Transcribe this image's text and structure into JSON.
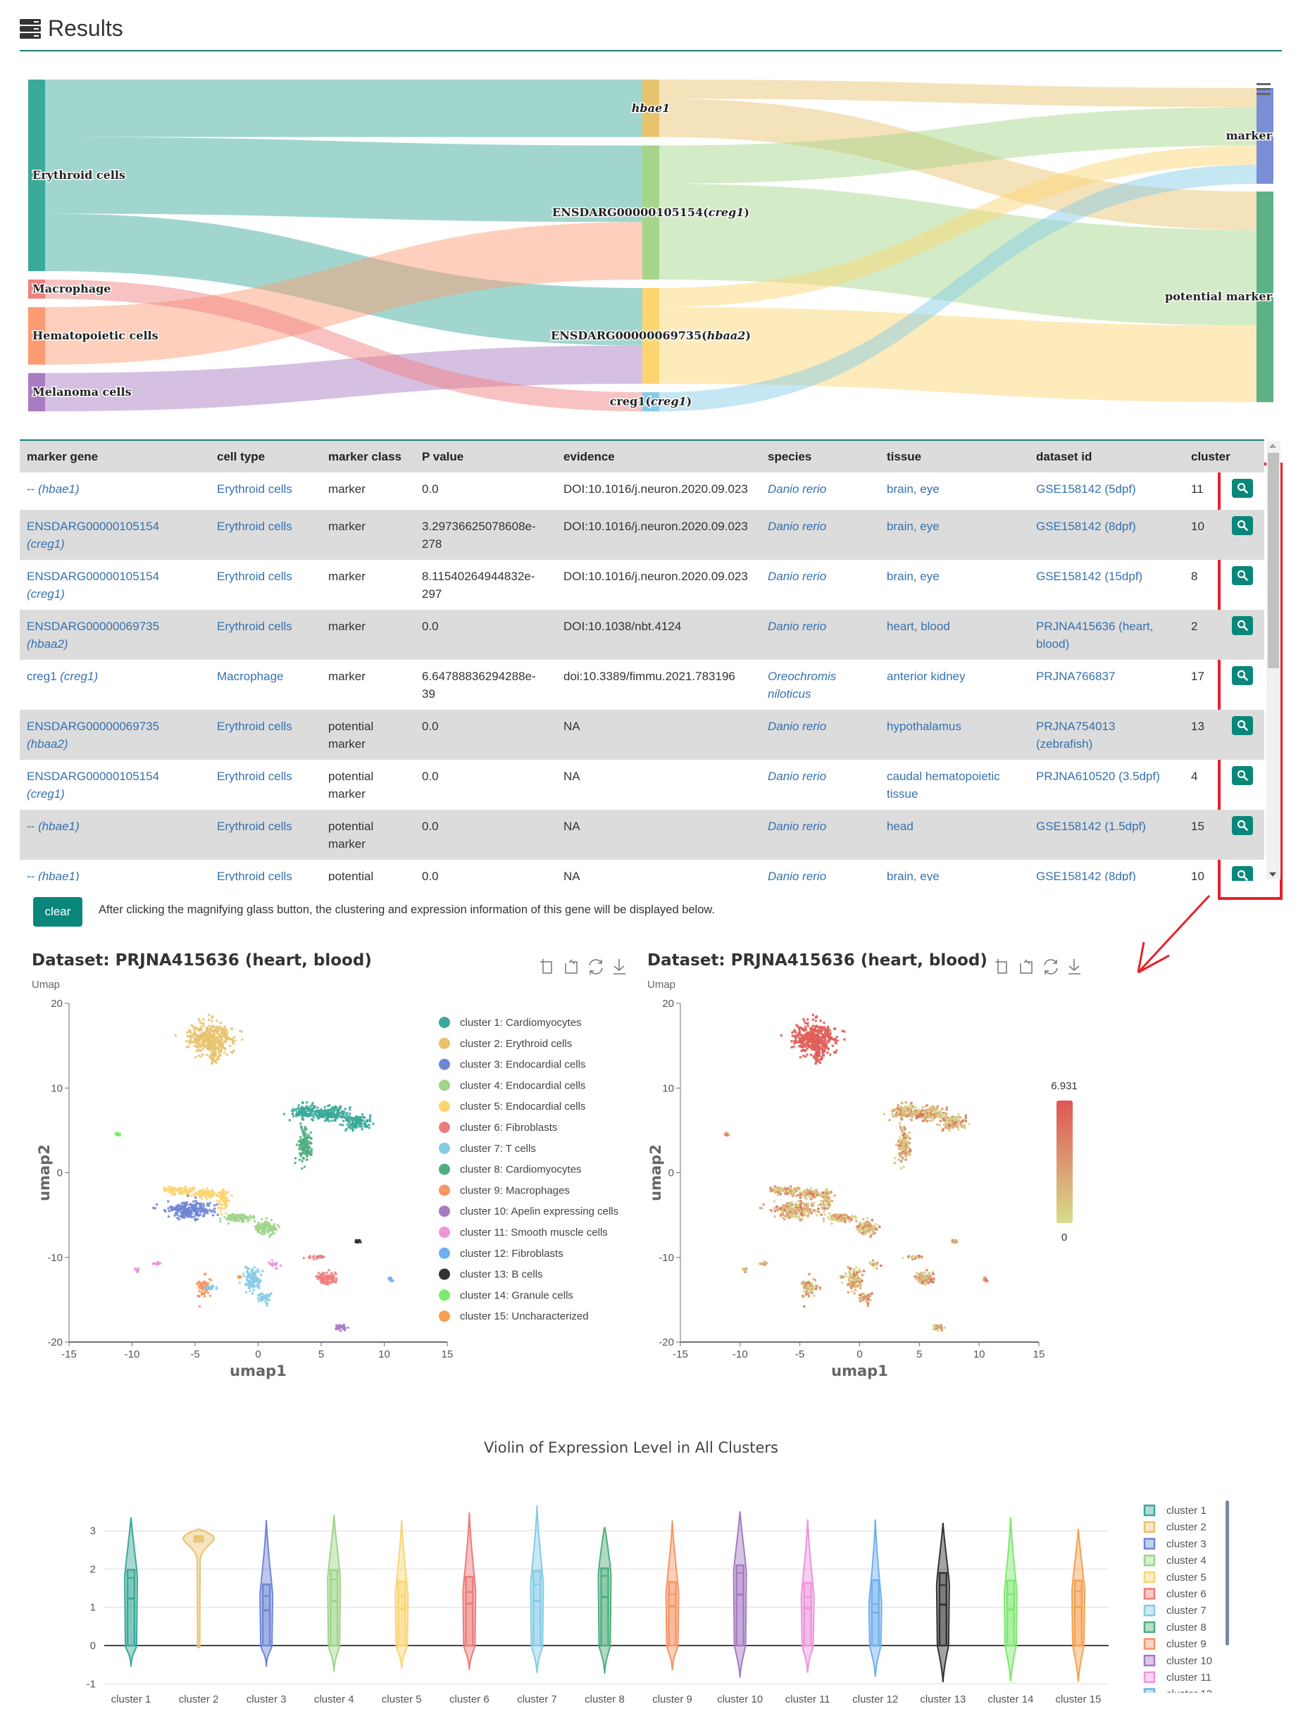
{
  "header": {
    "title": "Results",
    "icon": "server-icon"
  },
  "sankey": {
    "nodes": [
      {
        "id": "erythroid",
        "label_main": "Erythroid cells",
        "label_italic": "",
        "col": 0,
        "value": 10,
        "color": "#3aa99a"
      },
      {
        "id": "macrophage",
        "label_main": "Macrophage",
        "label_italic": "",
        "col": 0,
        "value": 1,
        "color": "#f08080"
      },
      {
        "id": "hematopoietic",
        "label_main": "Hematopoietic cells",
        "label_italic": "",
        "col": 0,
        "value": 3,
        "color": "#fc9a72"
      },
      {
        "id": "melanoma",
        "label_main": "Melanoma cells",
        "label_italic": "",
        "col": 0,
        "value": 2,
        "color": "#a97cc2"
      },
      {
        "id": "hbae1",
        "label_main": "",
        "label_italic": "hbae1",
        "col": 1,
        "value": 3,
        "color": "#e8c36e"
      },
      {
        "id": "g105154",
        "label_main": "ENSDARG00000105154(",
        "label_italic": "creg1",
        "label_end": ")",
        "col": 1,
        "value": 7,
        "color": "#a5d58a"
      },
      {
        "id": "g069735",
        "label_main": "ENSDARG00000069735(",
        "label_italic": "hbaa2",
        "label_end": ")",
        "col": 1,
        "value": 5,
        "color": "#fcd571"
      },
      {
        "id": "creg1",
        "label_main": "creg1(",
        "label_italic": "creg1",
        "label_end": ")",
        "col": 1,
        "value": 1,
        "color": "#86cbe6"
      },
      {
        "id": "marker",
        "label_main": "marker",
        "label_italic": "",
        "col": 2,
        "value": 5,
        "color": "#7a8fd6"
      },
      {
        "id": "potential",
        "label_main": "potential marker",
        "label_italic": "",
        "col": 2,
        "value": 11,
        "color": "#5db185"
      }
    ],
    "links": [
      {
        "source": "erythroid",
        "target": "hbae1",
        "value": 3
      },
      {
        "source": "erythroid",
        "target": "g105154",
        "value": 4
      },
      {
        "source": "erythroid",
        "target": "g069735",
        "value": 3
      },
      {
        "source": "hematopoietic",
        "target": "g105154",
        "value": 3
      },
      {
        "source": "melanoma",
        "target": "g069735",
        "value": 2
      },
      {
        "source": "macrophage",
        "target": "creg1",
        "value": 1
      },
      {
        "source": "hbae1",
        "target": "marker",
        "value": 1
      },
      {
        "source": "hbae1",
        "target": "potential",
        "value": 2
      },
      {
        "source": "g105154",
        "target": "marker",
        "value": 2
      },
      {
        "source": "g105154",
        "target": "potential",
        "value": 5
      },
      {
        "source": "g069735",
        "target": "marker",
        "value": 1
      },
      {
        "source": "g069735",
        "target": "potential",
        "value": 4
      },
      {
        "source": "creg1",
        "target": "marker",
        "value": 1
      }
    ],
    "menu_icon": "hamburger-menu-icon"
  },
  "table": {
    "columns": [
      "marker gene",
      "cell type",
      "marker class",
      "P value",
      "evidence",
      "species",
      "tissue",
      "dataset id",
      "cluster"
    ],
    "rows": [
      {
        "gene": "--",
        "gene_italic": "(hbae1)",
        "cell_type": "Erythroid cells",
        "marker_class": "marker",
        "p_value": "0.0",
        "evidence": "DOI:10.1016/j.neuron.2020.09.023",
        "species": "Danio rerio",
        "tissue": "brain, eye",
        "dataset": "GSE158142 (5dpf)",
        "cluster": "11"
      },
      {
        "gene": "ENSDARG00000105154",
        "gene_italic": "(creg1)",
        "cell_type": "Erythroid cells",
        "marker_class": "marker",
        "p_value": "3.29736625078608e-278",
        "evidence": "DOI:10.1016/j.neuron.2020.09.023",
        "species": "Danio rerio",
        "tissue": "brain, eye",
        "dataset": "GSE158142 (8dpf)",
        "cluster": "10"
      },
      {
        "gene": "ENSDARG00000105154",
        "gene_italic": "(creg1)",
        "cell_type": "Erythroid cells",
        "marker_class": "marker",
        "p_value": "8.11540264944832e-297",
        "evidence": "DOI:10.1016/j.neuron.2020.09.023",
        "species": "Danio rerio",
        "tissue": "brain, eye",
        "dataset": "GSE158142 (15dpf)",
        "cluster": "8"
      },
      {
        "gene": "ENSDARG00000069735",
        "gene_italic": "(hbaa2)",
        "cell_type": "Erythroid cells",
        "marker_class": "marker",
        "p_value": "0.0",
        "evidence": "DOI:10.1038/nbt.4124",
        "species": "Danio rerio",
        "tissue": "heart, blood",
        "dataset": "PRJNA415636 (heart, blood)",
        "cluster": "2"
      },
      {
        "gene": "creg1",
        "gene_italic": "(creg1)",
        "cell_type": "Macrophage",
        "marker_class": "marker",
        "p_value": "6.64788836294288e-39",
        "evidence": "doi:10.3389/fimmu.2021.783196",
        "species": "Oreochromis niloticus",
        "tissue": "anterior kidney",
        "dataset": "PRJNA766837",
        "cluster": "17"
      },
      {
        "gene": "ENSDARG00000069735",
        "gene_italic": "(hbaa2)",
        "cell_type": "Erythroid cells",
        "marker_class": "potential marker",
        "p_value": "0.0",
        "evidence": "NA",
        "species": "Danio rerio",
        "tissue": "hypothalamus",
        "dataset": "PRJNA754013 (zebrafish)",
        "cluster": "13"
      },
      {
        "gene": "ENSDARG00000105154",
        "gene_italic": "(creg1)",
        "cell_type": "Erythroid cells",
        "marker_class": "potential marker",
        "p_value": "0.0",
        "evidence": "NA",
        "species": "Danio rerio",
        "tissue": "caudal hematopoietic tissue",
        "dataset": "PRJNA610520 (3.5dpf)",
        "cluster": "4"
      },
      {
        "gene": "--",
        "gene_italic": "(hbae1)",
        "cell_type": "Erythroid cells",
        "marker_class": "potential marker",
        "p_value": "0.0",
        "evidence": "NA",
        "species": "Danio rerio",
        "tissue": "head",
        "dataset": "GSE158142 (1.5dpf)",
        "cluster": "15"
      },
      {
        "gene": "--",
        "gene_italic": "(hbae1)",
        "cell_type": "Erythroid cells",
        "marker_class": "potential",
        "p_value": "0.0",
        "evidence": "NA",
        "species": "Danio rerio",
        "tissue": "brain, eye",
        "dataset": "GSE158142 (8dpf)",
        "cluster": "10"
      }
    ],
    "action_icon": "search-icon"
  },
  "controls": {
    "clear_label": "clear",
    "hint": "After clicking the magnifying glass button, the clustering and expression information of this gene will be displayed below."
  },
  "colors": {
    "accent": "#0a877b",
    "link": "#3572b0",
    "annotation": "#e8202a"
  },
  "chart_data": [
    {
      "type": "scatter",
      "title": "Dataset: PRJNA415636 (heart, blood)",
      "subtitle": "Umap",
      "xlabel": "umap1",
      "ylabel": "umap2",
      "xlim": [
        -15,
        15
      ],
      "ylim": [
        -20,
        20
      ],
      "xticks": [
        -15,
        -10,
        -5,
        0,
        5,
        10,
        15
      ],
      "yticks": [
        -20,
        -10,
        0,
        10,
        20
      ],
      "legend_position": "right",
      "toolbox": [
        "zoom-icon",
        "zoom-reset-icon",
        "restore-icon",
        "download-icon"
      ],
      "legend": [
        {
          "name": "cluster 1: Cardiomyocytes",
          "color": "#3aa99a"
        },
        {
          "name": "cluster 2: Erythroid cells",
          "color": "#e8c36e"
        },
        {
          "name": "cluster 3: Endocardial cells",
          "color": "#6f86d6"
        },
        {
          "name": "cluster 4: Endocardial cells",
          "color": "#9fd48a"
        },
        {
          "name": "cluster 5: Endocardial cells",
          "color": "#fcd571"
        },
        {
          "name": "cluster 6: Fibroblasts",
          "color": "#ee7b7b"
        },
        {
          "name": "cluster 7: T cells",
          "color": "#86cbe6"
        },
        {
          "name": "cluster 8: Cardiomyocytes",
          "color": "#4fae80"
        },
        {
          "name": "cluster 9: Macrophages",
          "color": "#f79565"
        },
        {
          "name": "cluster 10: Apelin expressing cells",
          "color": "#a57bc2"
        },
        {
          "name": "cluster 11: Smooth muscle cells",
          "color": "#ee94dc"
        },
        {
          "name": "cluster 12: Fibroblasts",
          "color": "#6fb0ee"
        },
        {
          "name": "cluster 13: B cells",
          "color": "#333333"
        },
        {
          "name": "cluster 14: Granule cells",
          "color": "#7ee870"
        },
        {
          "name": "cluster 15: Uncharacterized",
          "color": "#f6a04f"
        }
      ],
      "regions": [
        {
          "cluster": 2,
          "cx": -3.7,
          "cy": 15.8,
          "sx": 1.1,
          "sy": 1.1
        },
        {
          "cluster": 2,
          "cx": -3.5,
          "cy": 13.8,
          "sx": 0.2,
          "sy": 0.5
        },
        {
          "cluster": 1,
          "cx": 3.8,
          "cy": 7.2,
          "sx": 0.8,
          "sy": 0.45
        },
        {
          "cluster": 1,
          "cx": 5.8,
          "cy": 7.0,
          "sx": 0.9,
          "sy": 0.5
        },
        {
          "cluster": 1,
          "cx": 7.8,
          "cy": 6.0,
          "sx": 0.7,
          "sy": 0.5
        },
        {
          "cluster": 8,
          "cx": 3.7,
          "cy": 3.4,
          "sx": 0.3,
          "sy": 1.3
        },
        {
          "cluster": 5,
          "cx": -6.3,
          "cy": -2.1,
          "sx": 0.8,
          "sy": 0.3
        },
        {
          "cluster": 5,
          "cx": -4.0,
          "cy": -2.5,
          "sx": 0.9,
          "sy": 0.3
        },
        {
          "cluster": 5,
          "cx": -2.7,
          "cy": -3.2,
          "sx": 0.25,
          "sy": 0.8
        },
        {
          "cluster": 3,
          "cx": -5.5,
          "cy": -4.4,
          "sx": 1.1,
          "sy": 0.6
        },
        {
          "cluster": 4,
          "cx": -1.5,
          "cy": -5.3,
          "sx": 0.8,
          "sy": 0.3
        },
        {
          "cluster": 4,
          "cx": 0.6,
          "cy": -6.5,
          "sx": 0.6,
          "sy": 0.5
        },
        {
          "cluster": 14,
          "cx": -11.1,
          "cy": 4.6,
          "sx": 0.15,
          "sy": 0.15
        },
        {
          "cluster": 13,
          "cx": 7.9,
          "cy": -8.1,
          "sx": 0.2,
          "sy": 0.1
        },
        {
          "cluster": 6,
          "cx": 5.4,
          "cy": -12.5,
          "sx": 0.5,
          "sy": 0.5
        },
        {
          "cluster": 6,
          "cx": 4.6,
          "cy": -10.0,
          "sx": 0.4,
          "sy": 0.15
        },
        {
          "cluster": 12,
          "cx": 10.5,
          "cy": -12.5,
          "sx": 0.15,
          "sy": 0.2
        },
        {
          "cluster": 9,
          "cx": -4.3,
          "cy": -13.5,
          "sx": 0.3,
          "sy": 0.7
        },
        {
          "cluster": 15,
          "cx": -1.5,
          "cy": -12.3,
          "sx": 0.1,
          "sy": 0.1
        },
        {
          "cluster": 7,
          "cx": -0.5,
          "cy": -12.5,
          "sx": 0.4,
          "sy": 0.8
        },
        {
          "cluster": 7,
          "cx": 0.5,
          "cy": -14.8,
          "sx": 0.3,
          "sy": 0.4
        },
        {
          "cluster": 7,
          "cx": -3.8,
          "cy": -13.5,
          "sx": 0.3,
          "sy": 0.2
        },
        {
          "cluster": 11,
          "cx": -9.6,
          "cy": -11.5,
          "sx": 0.15,
          "sy": 0.2
        },
        {
          "cluster": 11,
          "cx": -8.0,
          "cy": -10.7,
          "sx": 0.2,
          "sy": 0.1
        },
        {
          "cluster": 11,
          "cx": 1.3,
          "cy": -10.8,
          "sx": 0.3,
          "sy": 0.2
        },
        {
          "cluster": 10,
          "cx": 6.6,
          "cy": -18.3,
          "sx": 0.3,
          "sy": 0.25
        }
      ]
    },
    {
      "type": "scatter",
      "title": "Dataset: PRJNA415636 (heart, blood)",
      "subtitle": "Umap",
      "xlabel": "umap1",
      "ylabel": "umap2",
      "xlim": [
        -15,
        15
      ],
      "ylim": [
        -20,
        20
      ],
      "xticks": [
        -15,
        -10,
        -5,
        0,
        5,
        10,
        15
      ],
      "yticks": [
        -20,
        -10,
        0,
        10,
        20
      ],
      "toolbox": [
        "zoom-icon",
        "zoom-reset-icon",
        "restore-icon",
        "download-icon"
      ],
      "colorbar": {
        "min": 0,
        "max": 6.931,
        "min_label": "0",
        "max_label": "6.931",
        "low_color": "#d6dd8a",
        "high_color": "#e05555"
      },
      "high_expression_cluster": 2
    },
    {
      "type": "violin",
      "title": "Violin of Expression Level in All Clusters",
      "ylim": [
        -1,
        3.7
      ],
      "yticks": [
        -1,
        0,
        1,
        2,
        3
      ],
      "grid": true,
      "legend_position": "right",
      "categories": [
        "cluster 1",
        "cluster 2",
        "cluster 3",
        "cluster 4",
        "cluster 5",
        "cluster 6",
        "cluster 7",
        "cluster 8",
        "cluster 9",
        "cluster 10",
        "cluster 11",
        "cluster 12",
        "cluster 13",
        "cluster 14",
        "cluster 15"
      ],
      "series": [
        {
          "name": "cluster 1",
          "color": "#3aa99a",
          "min": -0.55,
          "q1": 0,
          "median": 1.23,
          "mean": 1.77,
          "q3": 1.98,
          "max": 3.35
        },
        {
          "name": "cluster 2",
          "color": "#e8c36e",
          "min": -0.05,
          "q1": 2.72,
          "median": 2.8,
          "mean": 2.78,
          "q3": 2.86,
          "max": 3.05
        },
        {
          "name": "cluster 3",
          "color": "#6f86d6",
          "min": -0.55,
          "q1": 0,
          "median": 0.92,
          "mean": 1.3,
          "q3": 1.6,
          "max": 3.28
        },
        {
          "name": "cluster 4",
          "color": "#9fd48a",
          "min": -0.68,
          "q1": 0,
          "median": 1.17,
          "mean": 1.73,
          "q3": 1.97,
          "max": 3.42
        },
        {
          "name": "cluster 5",
          "color": "#fcd571",
          "min": -0.6,
          "q1": 0,
          "median": 0.95,
          "mean": 1.3,
          "q3": 1.67,
          "max": 3.28
        },
        {
          "name": "cluster 6",
          "color": "#ee7b7b",
          "min": -0.64,
          "q1": 0,
          "median": 1.1,
          "mean": 1.4,
          "q3": 1.8,
          "max": 3.48
        },
        {
          "name": "cluster 7",
          "color": "#86cbe6",
          "min": -0.72,
          "q1": 0,
          "median": 1.17,
          "mean": 1.6,
          "q3": 1.95,
          "max": 3.66
        },
        {
          "name": "cluster 8",
          "color": "#4fae80",
          "min": -0.73,
          "q1": 0,
          "median": 1.27,
          "mean": 1.82,
          "q3": 2.02,
          "max": 3.1
        },
        {
          "name": "cluster 9",
          "color": "#f79565",
          "min": -0.65,
          "q1": 0,
          "median": 1.03,
          "mean": 1.34,
          "q3": 1.66,
          "max": 3.27
        },
        {
          "name": "cluster 10",
          "color": "#a57bc2",
          "min": -0.84,
          "q1": 0,
          "median": 1.33,
          "mean": 1.9,
          "q3": 2.1,
          "max": 3.51
        },
        {
          "name": "cluster 11",
          "color": "#ee94dc",
          "min": -0.71,
          "q1": 0,
          "median": 0.98,
          "mean": 1.27,
          "q3": 1.64,
          "max": 3.3
        },
        {
          "name": "cluster 12",
          "color": "#6fb0ee",
          "min": -0.82,
          "q1": 0,
          "median": 0.86,
          "mean": 1.08,
          "q3": 1.71,
          "max": 3.3
        },
        {
          "name": "cluster 13",
          "color": "#333333",
          "min": -0.96,
          "q1": 0,
          "median": 1.07,
          "mean": 1.58,
          "q3": 1.9,
          "max": 3.21
        },
        {
          "name": "cluster 14",
          "color": "#7ee870",
          "min": -0.94,
          "q1": 0,
          "median": 0.94,
          "mean": 1.34,
          "q3": 1.7,
          "max": 3.36
        },
        {
          "name": "cluster 15",
          "color": "#f6a04f",
          "min": -0.95,
          "q1": 0,
          "median": 1.01,
          "mean": 1.42,
          "q3": 1.7,
          "max": 3.05
        }
      ]
    }
  ]
}
